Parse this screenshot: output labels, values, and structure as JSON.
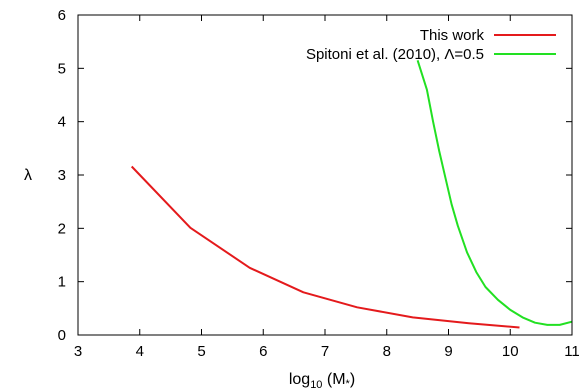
{
  "chart_data": {
    "type": "line",
    "xlabel": "log",
    "xlabel_sub": "10",
    "xlabel_arg": " (M",
    "xlabel_star": "*",
    "xlabel_close": ")",
    "ylabel": "λ",
    "xlim": [
      3,
      11
    ],
    "ylim": [
      0,
      6
    ],
    "xticks": [
      3,
      4,
      5,
      6,
      7,
      8,
      9,
      10,
      11
    ],
    "yticks": [
      0,
      1,
      2,
      3,
      4,
      5,
      6
    ],
    "grid": false,
    "legend_position": "top-right",
    "series": [
      {
        "name": "This work",
        "color": "#e41a1c",
        "x": [
          3.87,
          4.82,
          5.78,
          6.65,
          7.52,
          8.42,
          9.33,
          10.15
        ],
        "y": [
          3.16,
          2.01,
          1.26,
          0.8,
          0.52,
          0.33,
          0.22,
          0.14
        ]
      },
      {
        "name": "Spitoni et al. (2010), Λ=0.5",
        "color": "#22e022",
        "x": [
          8.5,
          8.65,
          8.75,
          8.85,
          8.95,
          9.05,
          9.15,
          9.3,
          9.45,
          9.6,
          9.8,
          10.0,
          10.2,
          10.4,
          10.6,
          10.8,
          11.0
        ],
        "y": [
          5.15,
          4.6,
          4.0,
          3.45,
          2.95,
          2.45,
          2.05,
          1.55,
          1.18,
          0.9,
          0.66,
          0.47,
          0.33,
          0.23,
          0.19,
          0.19,
          0.25
        ]
      }
    ]
  }
}
